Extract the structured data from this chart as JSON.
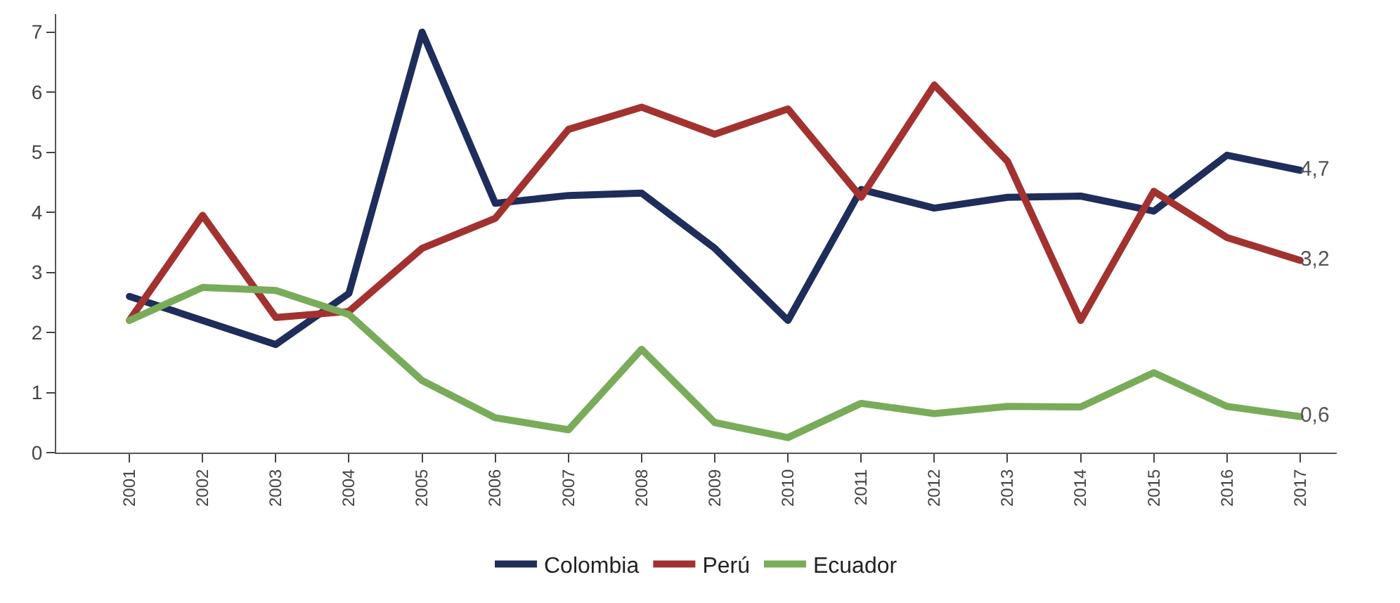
{
  "chart_data": {
    "type": "line",
    "categories": [
      "2001",
      "2002",
      "2003",
      "2004",
      "2005",
      "2006",
      "2007",
      "2008",
      "2009",
      "2010",
      "2011",
      "2012",
      "2013",
      "2014",
      "2015",
      "2016",
      "2017"
    ],
    "series": [
      {
        "name": "Colombia",
        "color": "#1f2d5a",
        "values": [
          2.6,
          2.2,
          1.8,
          2.65,
          7.0,
          4.15,
          4.28,
          4.32,
          3.4,
          2.2,
          4.38,
          4.07,
          4.25,
          4.27,
          4.02,
          4.95,
          4.7
        ],
        "value_labels": [
          null,
          null,
          null,
          null,
          null,
          null,
          null,
          null,
          null,
          null,
          null,
          null,
          null,
          null,
          null,
          null,
          "4,7"
        ]
      },
      {
        "name": "Perú",
        "color": "#a23230",
        "values": [
          2.2,
          3.95,
          2.25,
          2.35,
          3.4,
          3.9,
          5.38,
          5.75,
          5.3,
          5.72,
          4.25,
          6.12,
          4.85,
          2.2,
          4.35,
          3.58,
          3.2
        ],
        "value_labels": [
          null,
          null,
          null,
          null,
          null,
          null,
          null,
          null,
          null,
          null,
          null,
          null,
          null,
          null,
          null,
          null,
          "3,2"
        ]
      },
      {
        "name": "Ecuador",
        "color": "#7aab5a",
        "values": [
          2.2,
          2.75,
          2.7,
          2.3,
          1.2,
          0.58,
          0.38,
          1.72,
          0.5,
          0.25,
          0.82,
          0.65,
          0.77,
          0.76,
          1.33,
          0.77,
          0.6
        ],
        "value_labels": [
          null,
          null,
          null,
          null,
          null,
          null,
          null,
          null,
          null,
          null,
          null,
          null,
          null,
          null,
          null,
          null,
          "0,6"
        ]
      }
    ],
    "ylim": [
      0,
      7.3
    ],
    "yticks": [
      0,
      1,
      2,
      3,
      4,
      5,
      6,
      7
    ],
    "legend": "bottom",
    "marker": "none",
    "line_style": "solid"
  }
}
